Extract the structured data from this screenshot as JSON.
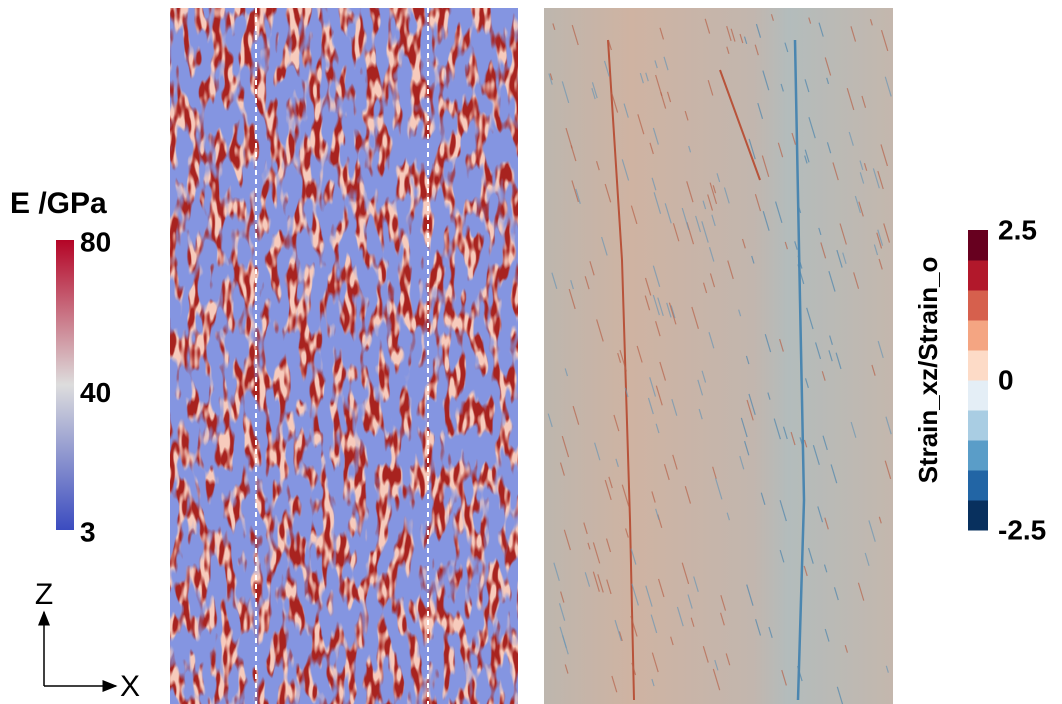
{
  "left_colorbar": {
    "title": "E /GPa",
    "range": [
      3,
      80
    ],
    "ticks": [
      80,
      40,
      3
    ],
    "colors": [
      "#3b4cc0",
      "#dddddd",
      "#b40426"
    ]
  },
  "right_colorbar": {
    "title": "Strain_xz/Strain_o",
    "range": [
      -2.5,
      2.5
    ],
    "ticks": [
      2.5,
      0,
      -2.5
    ],
    "colors": [
      "#08305e",
      "#2265a5",
      "#5a9dc8",
      "#a9cde3",
      "#e4eef6",
      "#fddbc7",
      "#f4a582",
      "#d6604d",
      "#b2182b",
      "#67001f"
    ]
  },
  "axes": {
    "z_label": "Z",
    "x_label": "X"
  }
}
